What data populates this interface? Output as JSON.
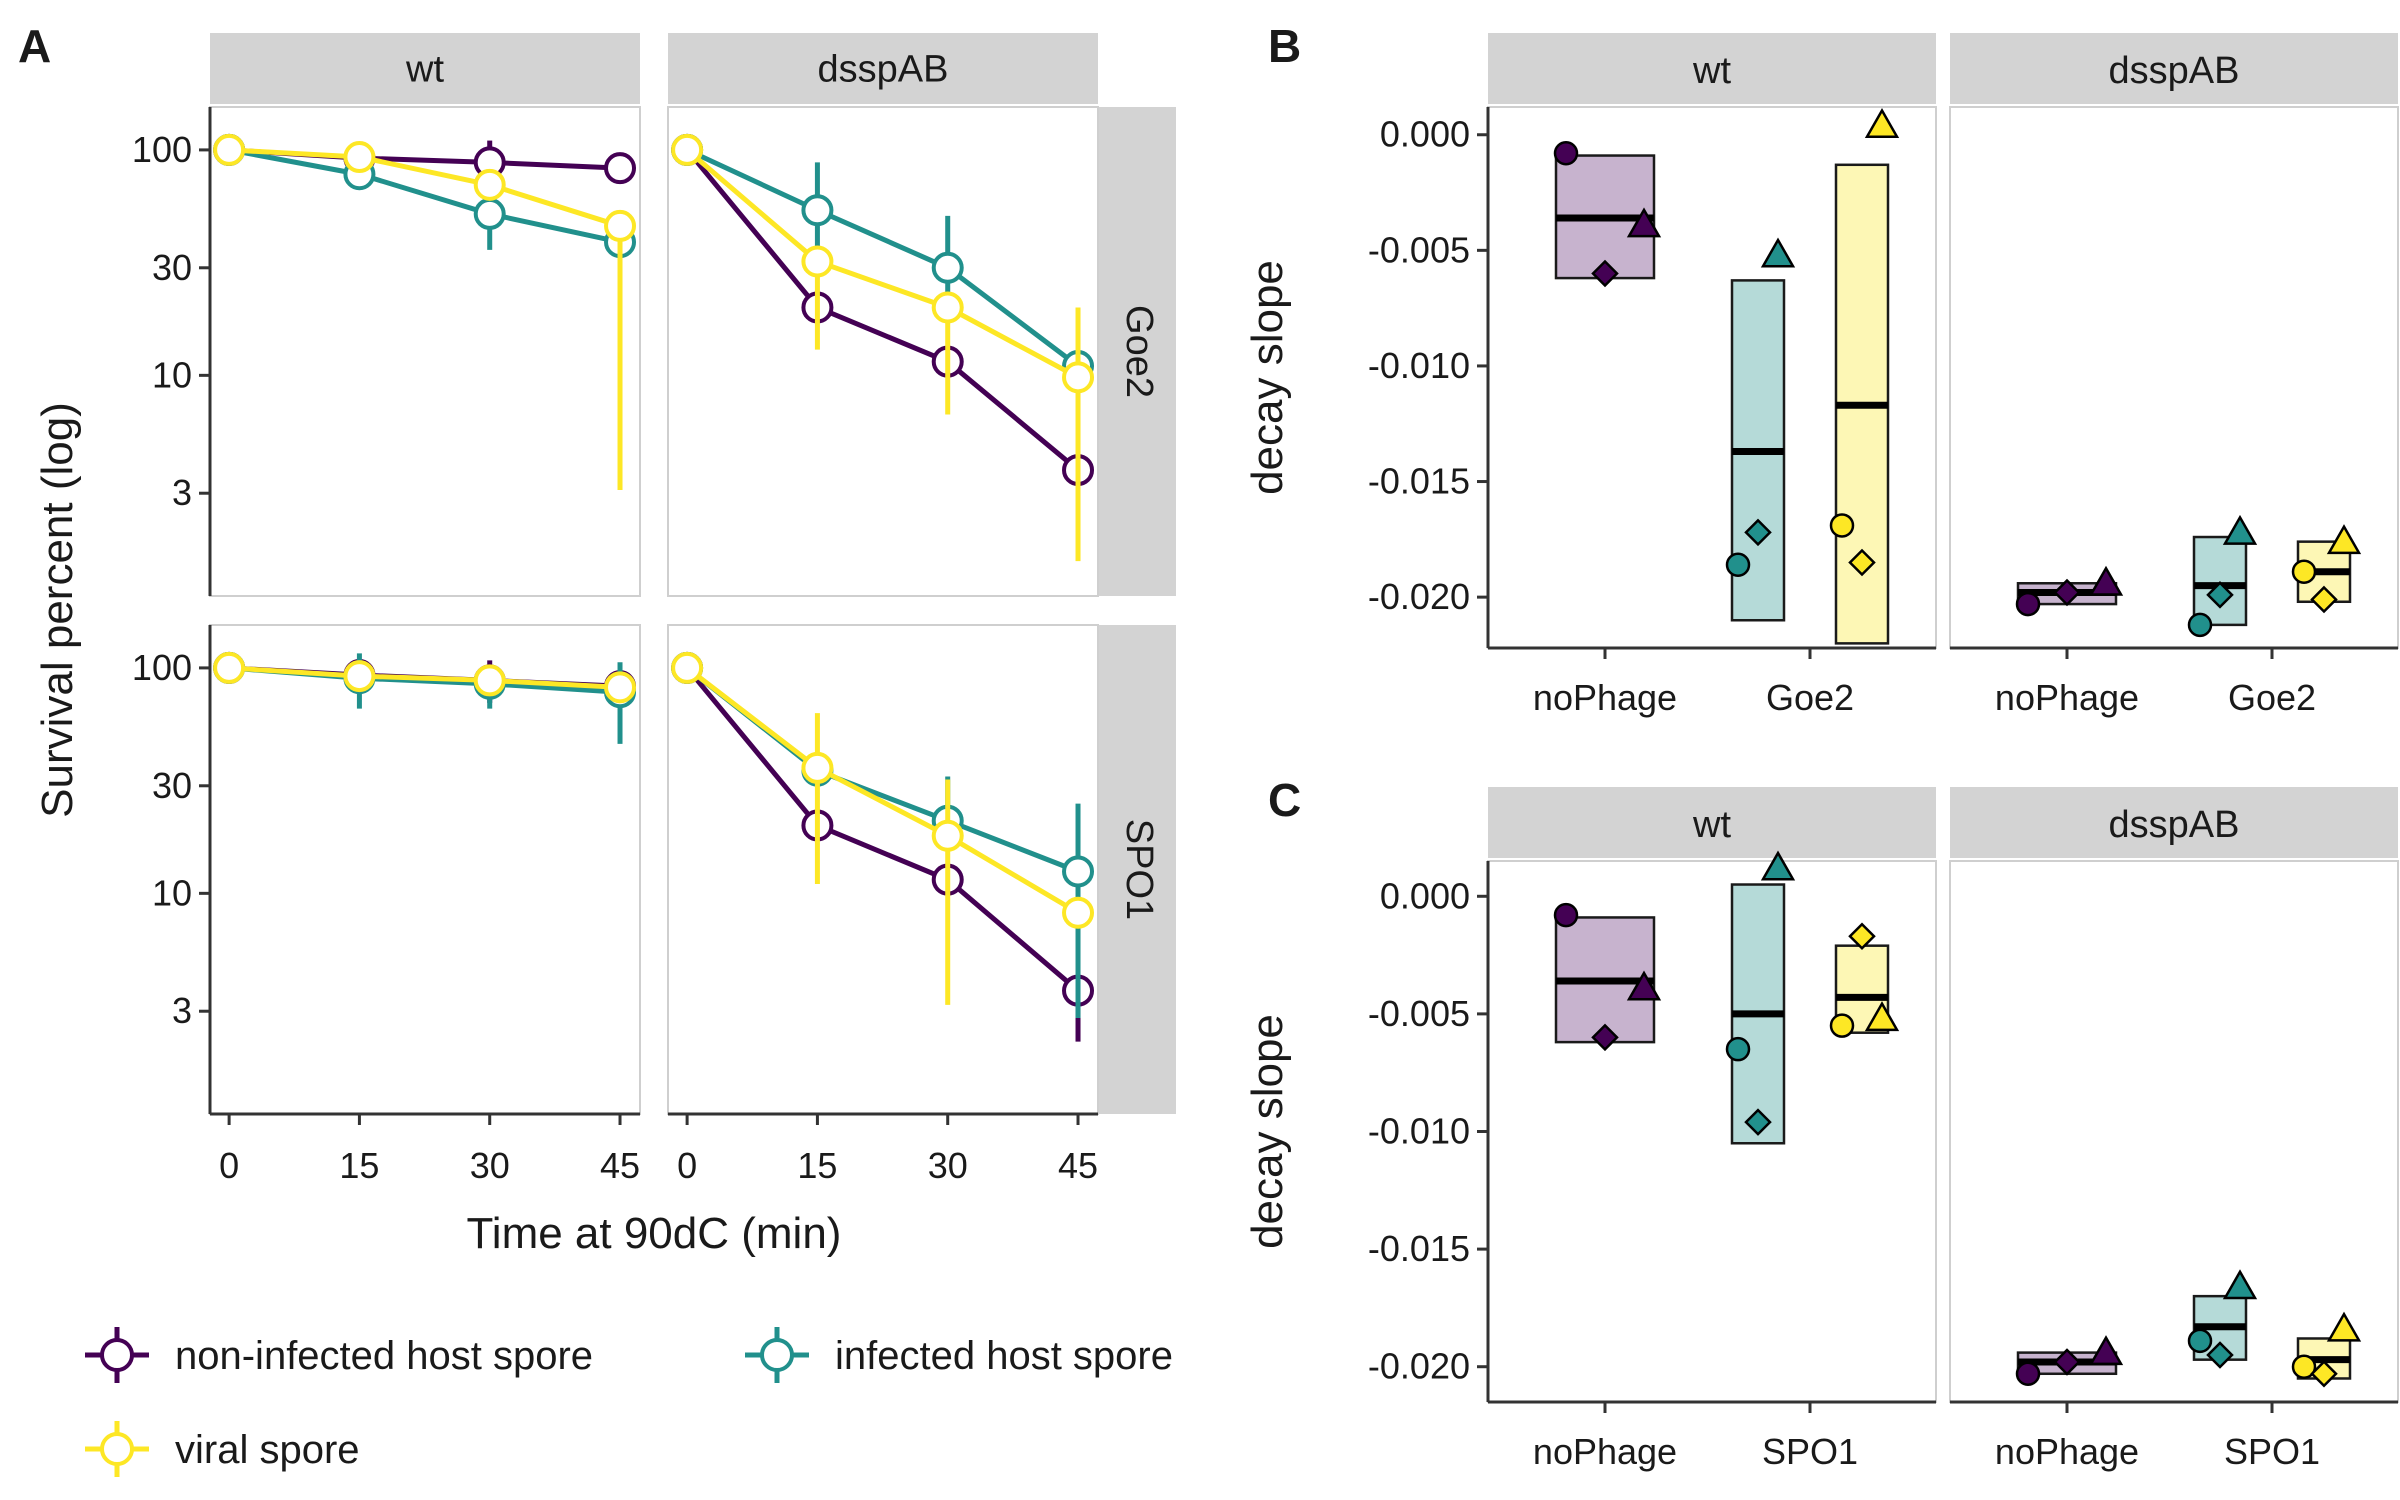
{
  "chart_data": [
    {
      "panel": "A",
      "type": "line",
      "xlabel": "Time at 90dC (min)",
      "ylabel": "Survival percent (log)",
      "y_scale": "log",
      "x_ticks": [
        0,
        15,
        30,
        45
      ],
      "y_ticks": [
        3,
        10,
        30,
        100
      ],
      "y_tick_labels": [
        "3",
        "10",
        "30",
        "100"
      ],
      "col_facets": [
        "wt",
        "dsspAB"
      ],
      "row_facets": [
        "Goe2",
        "SPO1"
      ],
      "legend": {
        "position": "bottom-left",
        "entries": [
          {
            "label": "non-infected host spore",
            "color": "#440154"
          },
          {
            "label": "infected host spore",
            "color": "#21908C"
          },
          {
            "label": "viral spore",
            "color": "#FDE725"
          }
        ]
      },
      "facets": [
        {
          "col": "wt",
          "row": "Goe2",
          "series": [
            {
              "color": "#440154",
              "x": [
                0,
                15,
                30,
                45
              ],
              "y": [
                100,
                92,
                88,
                83
              ],
              "lo": [
                100,
                90,
                76,
                83
              ],
              "hi": [
                100,
                94,
                110,
                83
              ]
            },
            {
              "color": "#21908C",
              "x": [
                0,
                15,
                30,
                45
              ],
              "y": [
                100,
                78,
                52,
                39
              ],
              "lo": [
                100,
                78,
                36,
                39
              ],
              "hi": [
                100,
                78,
                72,
                39
              ]
            },
            {
              "color": "#FDE725",
              "x": [
                0,
                15,
                30,
                45
              ],
              "y": [
                100,
                93,
                70,
                46
              ],
              "lo": [
                100,
                93,
                70,
                3.1
              ],
              "hi": [
                100,
                93,
                70,
                48
              ]
            }
          ]
        },
        {
          "col": "dsspAB",
          "row": "Goe2",
          "series": [
            {
              "color": "#440154",
              "x": [
                0,
                15,
                30,
                45
              ],
              "y": [
                100,
                20,
                11.5,
                3.8
              ],
              "lo": [
                100,
                20,
                11.5,
                3.8
              ],
              "hi": [
                100,
                20,
                11.5,
                3.8
              ]
            },
            {
              "color": "#21908C",
              "x": [
                0,
                15,
                30,
                45
              ],
              "y": [
                100,
                54,
                30,
                11
              ],
              "lo": [
                100,
                34,
                20,
                11
              ],
              "hi": [
                100,
                88,
                51,
                11
              ]
            },
            {
              "color": "#FDE725",
              "x": [
                0,
                15,
                30,
                45
              ],
              "y": [
                100,
                32,
                20,
                9.8
              ],
              "lo": [
                100,
                13,
                6.7,
                1.5
              ],
              "hi": [
                100,
                32,
                20,
                20
              ]
            }
          ]
        },
        {
          "col": "wt",
          "row": "SPO1",
          "series": [
            {
              "color": "#440154",
              "x": [
                0,
                15,
                30,
                45
              ],
              "y": [
                100,
                93,
                88,
                83
              ],
              "lo": [
                100,
                93,
                70,
                83
              ],
              "hi": [
                100,
                93,
                108,
                83
              ]
            },
            {
              "color": "#21908C",
              "x": [
                0,
                15,
                30,
                45
              ],
              "y": [
                100,
                90,
                85,
                78
              ],
              "lo": [
                100,
                66,
                66,
                46
              ],
              "hi": [
                100,
                116,
                102,
                106
              ]
            },
            {
              "color": "#FDE725",
              "x": [
                0,
                15,
                30,
                45
              ],
              "y": [
                100,
                92,
                88,
                82
              ],
              "lo": [
                100,
                92,
                88,
                82
              ],
              "hi": [
                100,
                92,
                88,
                82
              ]
            }
          ]
        },
        {
          "col": "dsspAB",
          "row": "SPO1",
          "series": [
            {
              "color": "#440154",
              "x": [
                0,
                15,
                30,
                45
              ],
              "y": [
                100,
                20,
                11.5,
                3.7
              ],
              "lo": [
                100,
                20,
                11.5,
                2.2
              ],
              "hi": [
                100,
                20,
                11.5,
                3.7
              ]
            },
            {
              "color": "#21908C",
              "x": [
                0,
                15,
                30,
                45
              ],
              "y": [
                100,
                35,
                21,
                12.5
              ],
              "lo": [
                100,
                35,
                21,
                2.8
              ],
              "hi": [
                100,
                35,
                33,
                25
              ]
            },
            {
              "color": "#FDE725",
              "x": [
                0,
                15,
                30,
                45
              ],
              "y": [
                100,
                36,
                18,
                8.2
              ],
              "lo": [
                100,
                11,
                3.2,
                8.2
              ],
              "hi": [
                100,
                63,
                32,
                8.2
              ]
            }
          ]
        }
      ]
    },
    {
      "panel": "B",
      "type": "box",
      "ylabel": "decay slope",
      "ylim": [
        -0.0222,
        0.0012
      ],
      "y_ticks": [
        -0.02,
        -0.015,
        -0.01,
        -0.005,
        0
      ],
      "y_tick_labels": [
        "-0.020",
        "-0.015",
        "-0.010",
        "-0.005",
        "0.000"
      ],
      "col_facets": [
        "wt",
        "dsspAB"
      ],
      "facets": [
        {
          "col": "wt",
          "categories": [
            "noPhage",
            "Goe2"
          ],
          "groups": [
            {
              "category": "noPhage",
              "fill": "#C7B3CE",
              "low": -0.0062,
              "high": -0.0009,
              "median": -0.0036,
              "points": [
                {
                  "value": -0.0008,
                  "shape": "circle",
                  "color": "#440154"
                },
                {
                  "value": -0.006,
                  "shape": "diamond",
                  "color": "#440154"
                },
                {
                  "value": -0.0039,
                  "shape": "triangle",
                  "color": "#440154"
                }
              ]
            },
            {
              "category": "Goe2",
              "fill": "#B5DAD8",
              "low": -0.021,
              "high": -0.0063,
              "median": -0.0137,
              "points": [
                {
                  "value": -0.0186,
                  "shape": "circle",
                  "color": "#21908C"
                },
                {
                  "value": -0.0172,
                  "shape": "diamond",
                  "color": "#21908C"
                },
                {
                  "value": -0.0052,
                  "shape": "triangle",
                  "color": "#21908C"
                }
              ]
            },
            {
              "category": "Goe2",
              "fill": "#FDF7B5",
              "low": -0.022,
              "high": -0.0013,
              "median": -0.0117,
              "points": [
                {
                  "value": -0.0169,
                  "shape": "circle",
                  "color": "#FDE725"
                },
                {
                  "value": -0.0185,
                  "shape": "diamond",
                  "color": "#FDE725"
                },
                {
                  "value": 0.0004,
                  "shape": "triangle",
                  "color": "#FDE725"
                }
              ]
            }
          ]
        },
        {
          "col": "dsspAB",
          "categories": [
            "noPhage",
            "Goe2"
          ],
          "groups": [
            {
              "category": "noPhage",
              "fill": "#C7B3CE",
              "low": -0.0203,
              "high": -0.0194,
              "median": -0.0198,
              "points": [
                {
                  "value": -0.0203,
                  "shape": "circle",
                  "color": "#440154"
                },
                {
                  "value": -0.0198,
                  "shape": "diamond",
                  "color": "#440154"
                },
                {
                  "value": -0.0194,
                  "shape": "triangle",
                  "color": "#440154"
                }
              ]
            },
            {
              "category": "Goe2",
              "fill": "#B5DAD8",
              "low": -0.0212,
              "high": -0.0174,
              "median": -0.0195,
              "points": [
                {
                  "value": -0.0212,
                  "shape": "circle",
                  "color": "#21908C"
                },
                {
                  "value": -0.0199,
                  "shape": "diamond",
                  "color": "#21908C"
                },
                {
                  "value": -0.0172,
                  "shape": "triangle",
                  "color": "#21908C"
                }
              ]
            },
            {
              "category": "Goe2",
              "fill": "#FDF7B5",
              "low": -0.0202,
              "high": -0.0176,
              "median": -0.0189,
              "points": [
                {
                  "value": -0.0189,
                  "shape": "circle",
                  "color": "#FDE725"
                },
                {
                  "value": -0.0201,
                  "shape": "diamond",
                  "color": "#FDE725"
                },
                {
                  "value": -0.0176,
                  "shape": "triangle",
                  "color": "#FDE725"
                }
              ]
            }
          ]
        }
      ]
    },
    {
      "panel": "C",
      "type": "box",
      "ylabel": "decay slope",
      "ylim": [
        -0.0215,
        0.0015
      ],
      "y_ticks": [
        -0.02,
        -0.015,
        -0.01,
        -0.005,
        0
      ],
      "y_tick_labels": [
        "-0.020",
        "-0.015",
        "-0.010",
        "-0.005",
        "0.000"
      ],
      "col_facets": [
        "wt",
        "dsspAB"
      ],
      "facets": [
        {
          "col": "wt",
          "categories": [
            "noPhage",
            "SPO1"
          ],
          "groups": [
            {
              "category": "noPhage",
              "fill": "#C7B3CE",
              "low": -0.0062,
              "high": -0.0009,
              "median": -0.0036,
              "points": [
                {
                  "value": -0.0008,
                  "shape": "circle",
                  "color": "#440154"
                },
                {
                  "value": -0.006,
                  "shape": "diamond",
                  "color": "#440154"
                },
                {
                  "value": -0.0039,
                  "shape": "triangle",
                  "color": "#440154"
                }
              ]
            },
            {
              "category": "SPO1",
              "fill": "#B5DAD8",
              "low": -0.0105,
              "high": 0.0005,
              "median": -0.005,
              "points": [
                {
                  "value": -0.0065,
                  "shape": "circle",
                  "color": "#21908C"
                },
                {
                  "value": -0.0096,
                  "shape": "diamond",
                  "color": "#21908C"
                },
                {
                  "value": 0.0012,
                  "shape": "triangle",
                  "color": "#21908C"
                }
              ]
            },
            {
              "category": "SPO1",
              "fill": "#FDF7B5",
              "low": -0.0058,
              "high": -0.0021,
              "median": -0.0043,
              "points": [
                {
                  "value": -0.0055,
                  "shape": "circle",
                  "color": "#FDE725"
                },
                {
                  "value": -0.0017,
                  "shape": "diamond",
                  "color": "#FDE725"
                },
                {
                  "value": -0.0052,
                  "shape": "triangle",
                  "color": "#FDE725"
                }
              ]
            }
          ]
        },
        {
          "col": "dsspAB",
          "categories": [
            "noPhage",
            "SPO1"
          ],
          "groups": [
            {
              "category": "noPhage",
              "fill": "#C7B3CE",
              "low": -0.0203,
              "high": -0.0194,
              "median": -0.0198,
              "points": [
                {
                  "value": -0.0203,
                  "shape": "circle",
                  "color": "#440154"
                },
                {
                  "value": -0.0198,
                  "shape": "diamond",
                  "color": "#440154"
                },
                {
                  "value": -0.0194,
                  "shape": "triangle",
                  "color": "#440154"
                }
              ]
            },
            {
              "category": "SPO1",
              "fill": "#B5DAD8",
              "low": -0.0197,
              "high": -0.017,
              "median": -0.0183,
              "points": [
                {
                  "value": -0.0189,
                  "shape": "circle",
                  "color": "#21908C"
                },
                {
                  "value": -0.0195,
                  "shape": "diamond",
                  "color": "#21908C"
                },
                {
                  "value": -0.0166,
                  "shape": "triangle",
                  "color": "#21908C"
                }
              ]
            },
            {
              "category": "SPO1",
              "fill": "#FDF7B5",
              "low": -0.0205,
              "high": -0.0188,
              "median": -0.0197,
              "points": [
                {
                  "value": -0.02,
                  "shape": "circle",
                  "color": "#FDE725"
                },
                {
                  "value": -0.0203,
                  "shape": "diamond",
                  "color": "#FDE725"
                },
                {
                  "value": -0.0184,
                  "shape": "triangle",
                  "color": "#FDE725"
                }
              ]
            }
          ]
        }
      ]
    }
  ]
}
